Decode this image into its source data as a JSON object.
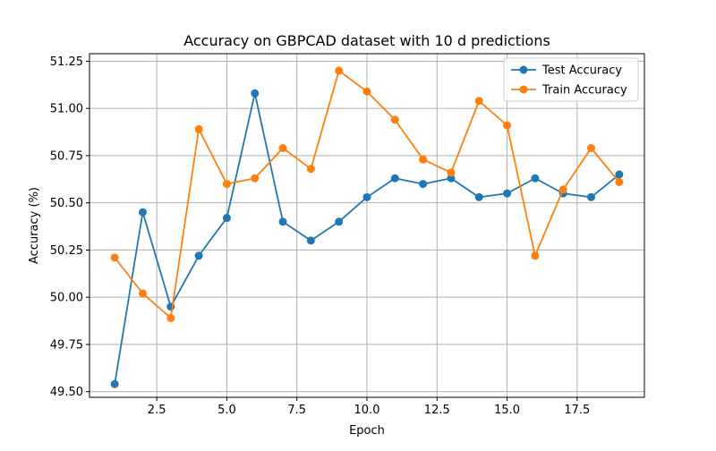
{
  "chart_data": {
    "type": "line",
    "title": "Accuracy on GBPCAD dataset with 10 d predictions",
    "xlabel": "Epoch",
    "ylabel": "Accuracy (%)",
    "xlim": [
      0.1,
      19.9
    ],
    "ylim": [
      49.47,
      51.29
    ],
    "xticks": [
      2.5,
      5.0,
      7.5,
      10.0,
      12.5,
      15.0,
      17.5
    ],
    "xtick_labels": [
      "2.5",
      "5.0",
      "7.5",
      "10.0",
      "12.5",
      "15.0",
      "17.5"
    ],
    "yticks": [
      49.5,
      49.75,
      50.0,
      50.25,
      50.5,
      50.75,
      51.0,
      51.25
    ],
    "ytick_labels": [
      "49.50",
      "49.75",
      "50.00",
      "50.25",
      "50.50",
      "50.75",
      "51.00",
      "51.25"
    ],
    "grid": true,
    "legend_position": "top-right",
    "x": [
      1,
      2,
      3,
      4,
      5,
      6,
      7,
      8,
      9,
      10,
      11,
      12,
      13,
      14,
      15,
      16,
      17,
      18,
      19
    ],
    "series": [
      {
        "name": "Test Accuracy",
        "color": "#1f77b4",
        "values": [
          49.54,
          50.45,
          49.95,
          50.22,
          50.42,
          51.08,
          50.4,
          50.3,
          50.4,
          50.53,
          50.63,
          50.6,
          50.63,
          50.53,
          50.55,
          50.63,
          50.55,
          50.53,
          50.65
        ]
      },
      {
        "name": "Train Accuracy",
        "color": "#ff7f0e",
        "values": [
          50.21,
          50.02,
          49.89,
          50.89,
          50.6,
          50.63,
          50.79,
          50.68,
          51.2,
          51.09,
          50.94,
          50.73,
          50.66,
          51.04,
          50.91,
          50.22,
          50.57,
          50.79,
          50.61
        ]
      }
    ]
  }
}
